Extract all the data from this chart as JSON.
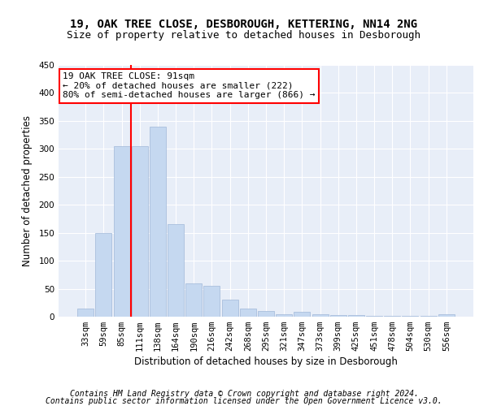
{
  "title1": "19, OAK TREE CLOSE, DESBOROUGH, KETTERING, NN14 2NG",
  "title2": "Size of property relative to detached houses in Desborough",
  "xlabel": "Distribution of detached houses by size in Desborough",
  "ylabel": "Number of detached properties",
  "categories": [
    "33sqm",
    "59sqm",
    "85sqm",
    "111sqm",
    "138sqm",
    "164sqm",
    "190sqm",
    "216sqm",
    "242sqm",
    "268sqm",
    "295sqm",
    "321sqm",
    "347sqm",
    "373sqm",
    "399sqm",
    "425sqm",
    "451sqm",
    "478sqm",
    "504sqm",
    "530sqm",
    "556sqm"
  ],
  "values": [
    15,
    150,
    305,
    305,
    340,
    165,
    60,
    55,
    30,
    15,
    10,
    5,
    8,
    5,
    3,
    3,
    2,
    1,
    1,
    1,
    4
  ],
  "bar_color": "#c5d8f0",
  "bar_edge_color": "#a0b8d8",
  "red_line_index": 2.5,
  "annotation_text": "19 OAK TREE CLOSE: 91sqm\n← 20% of detached houses are smaller (222)\n80% of semi-detached houses are larger (866) →",
  "annotation_box_color": "white",
  "annotation_box_edge": "red",
  "footer1": "Contains HM Land Registry data © Crown copyright and database right 2024.",
  "footer2": "Contains public sector information licensed under the Open Government Licence v3.0.",
  "ylim": [
    0,
    450
  ],
  "yticks": [
    0,
    50,
    100,
    150,
    200,
    250,
    300,
    350,
    400,
    450
  ],
  "background_color": "#e8eef8",
  "grid_color": "#ffffff",
  "title_fontsize": 10,
  "subtitle_fontsize": 9,
  "axis_label_fontsize": 8.5,
  "tick_fontsize": 7.5,
  "footer_fontsize": 7
}
